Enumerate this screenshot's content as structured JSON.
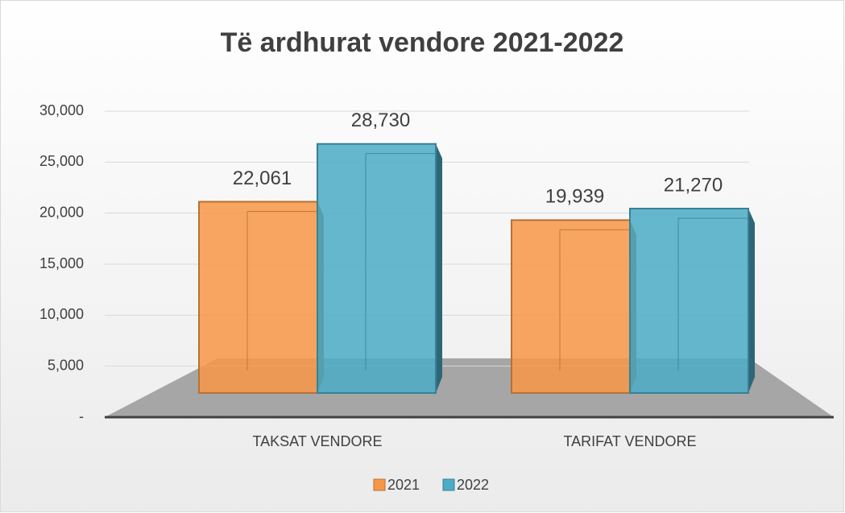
{
  "chart_data": {
    "type": "bar3d",
    "title": "Të ardhurat vendore 2021-2022",
    "categories": [
      "TAKSAT VENDORE",
      "TARIFAT VENDORE"
    ],
    "series": [
      {
        "name": "2021",
        "color": "#f79646",
        "values": [
          22061,
          19939
        ],
        "value_labels": [
          "22,061",
          "19,939"
        ]
      },
      {
        "name": "2022",
        "color": "#4bacc6",
        "values": [
          28730,
          21270
        ],
        "value_labels": [
          "28,730",
          "21,270"
        ]
      }
    ],
    "ylim": [
      0,
      30000
    ],
    "yticks": [
      {
        "value": 0,
        "label": "-"
      },
      {
        "value": 5000,
        "label": "5,000"
      },
      {
        "value": 10000,
        "label": "10,000"
      },
      {
        "value": 15000,
        "label": "15,000"
      },
      {
        "value": 20000,
        "label": "20,000"
      },
      {
        "value": 25000,
        "label": "25,000"
      },
      {
        "value": 30000,
        "label": "30,000"
      }
    ],
    "grid": true,
    "legend": "bottom"
  }
}
